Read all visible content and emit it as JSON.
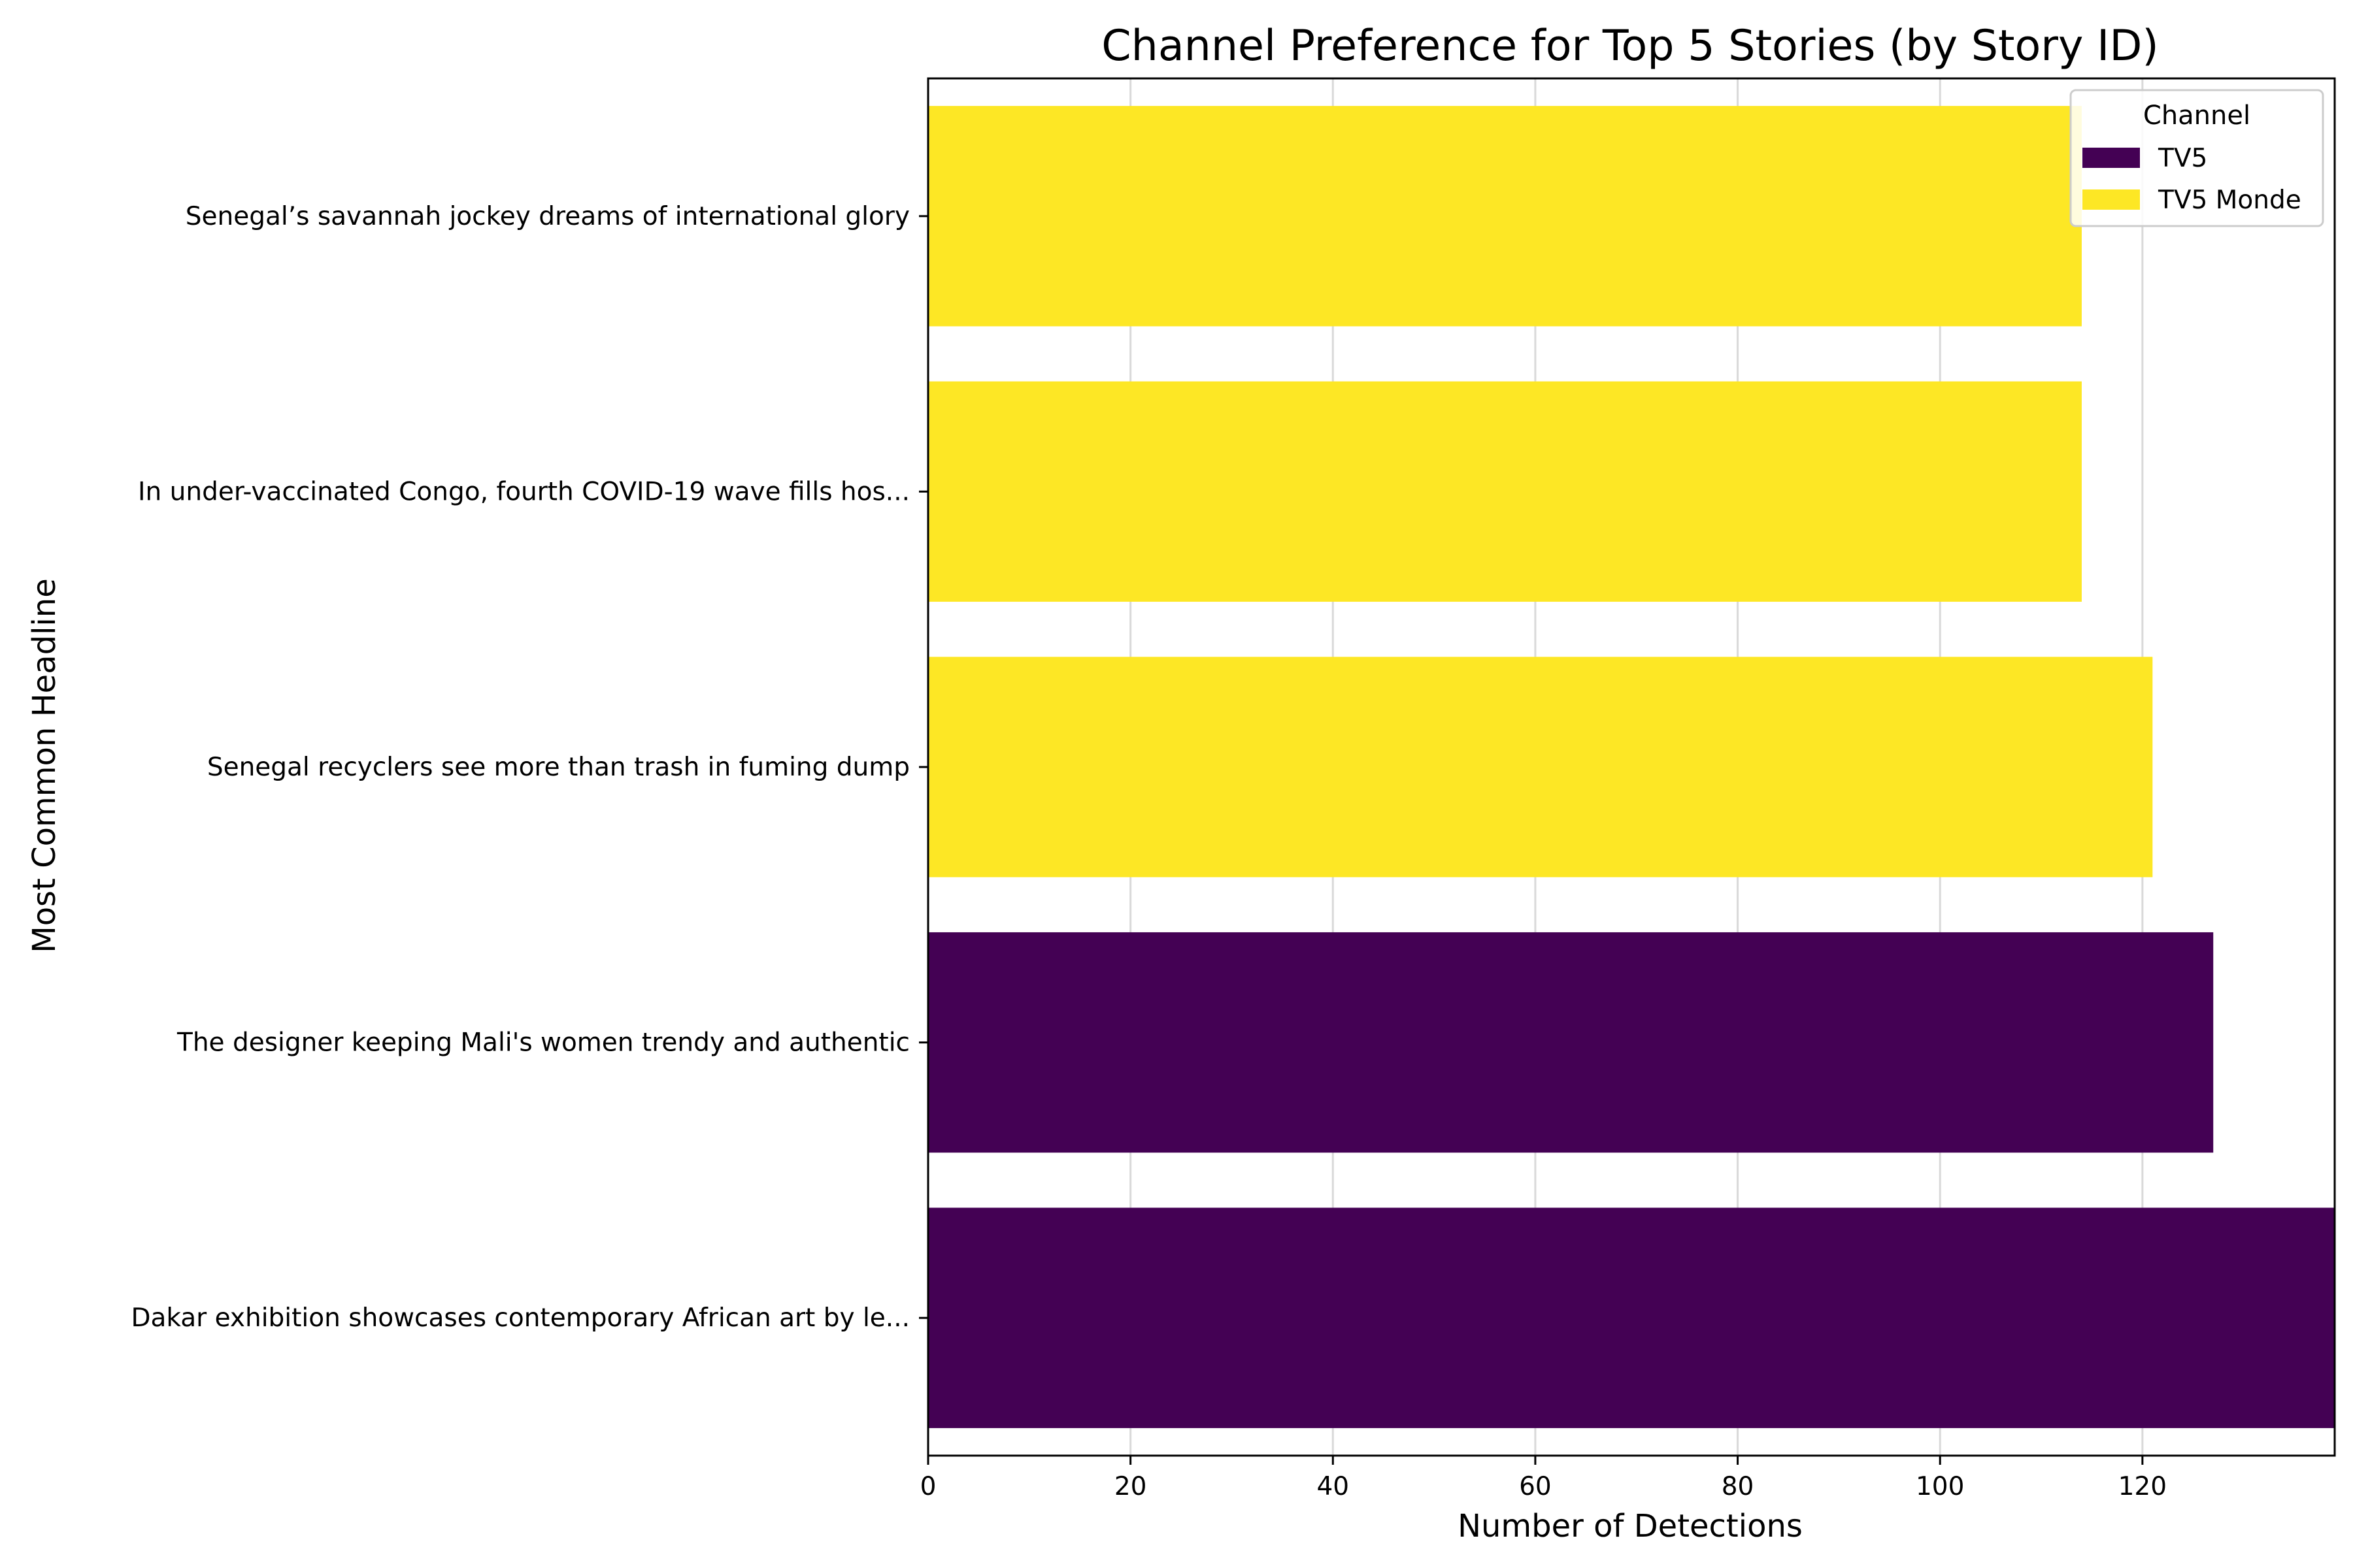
{
  "colors": {
    "TV5": "#440154",
    "TV5 Monde": "#fde725",
    "grid": "#d9d9d9",
    "axis": "#000000"
  },
  "chart_data": {
    "type": "bar",
    "orientation": "horizontal",
    "title": "Channel Preference for Top 5 Stories (by Story ID)",
    "xlabel": "Number of Detections",
    "ylabel": "Most Common Headline",
    "xlim": [
      0,
      139
    ],
    "xticks": [
      0,
      20,
      40,
      60,
      80,
      100,
      120
    ],
    "grid": "vertical",
    "legend": {
      "title": "Channel",
      "placement": "top-right",
      "entries": [
        "TV5",
        "TV5 Monde"
      ]
    },
    "bars": [
      {
        "headline": "Senegal’s savannah jockey dreams of international glory",
        "value": 114,
        "channel": "TV5 Monde"
      },
      {
        "headline": "In under-vaccinated Congo, fourth COVID-19 wave fills hos...",
        "value": 114,
        "channel": "TV5 Monde"
      },
      {
        "headline": "Senegal recyclers see more than trash in fuming dump",
        "value": 121,
        "channel": "TV5 Monde"
      },
      {
        "headline": "The designer keeping Mali's women trendy and authentic",
        "value": 127,
        "channel": "TV5"
      },
      {
        "headline": "Dakar exhibition showcases contemporary African art by le...",
        "value": 139,
        "channel": "TV5"
      }
    ]
  }
}
